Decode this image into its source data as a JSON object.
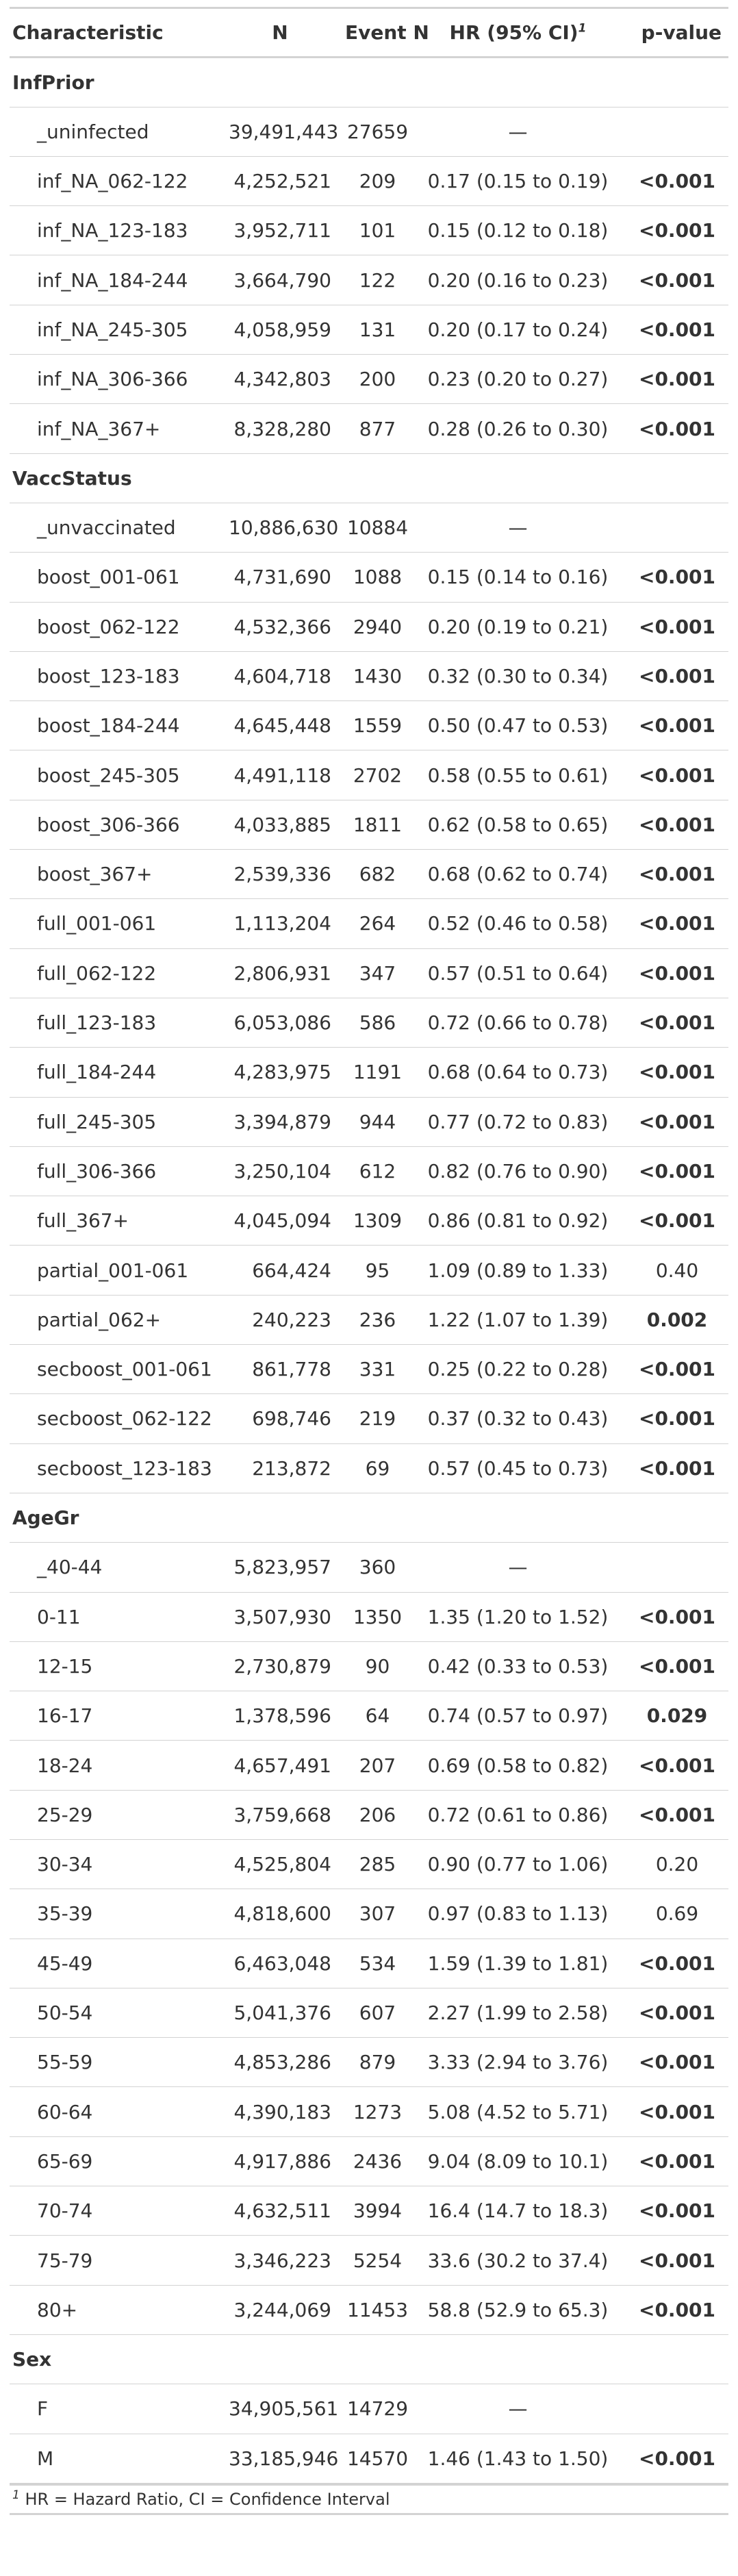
{
  "header": {
    "characteristic": "Characteristic",
    "n": "N",
    "event_n": "Event N",
    "hr": "HR (95% CI)",
    "hr_sup": "1",
    "p": "p-value"
  },
  "groups": [
    {
      "name": "InfPrior",
      "rows": [
        {
          "label": "_uninfected",
          "n": "39,491,443",
          "event": "27659",
          "hr": "—",
          "p": "",
          "sig": false
        },
        {
          "label": "inf_NA_062-122",
          "n": "4,252,521",
          "event": "209",
          "hr": "0.17 (0.15 to 0.19)",
          "p": "<0.001",
          "sig": true
        },
        {
          "label": "inf_NA_123-183",
          "n": "3,952,711",
          "event": "101",
          "hr": "0.15 (0.12 to 0.18)",
          "p": "<0.001",
          "sig": true
        },
        {
          "label": "inf_NA_184-244",
          "n": "3,664,790",
          "event": "122",
          "hr": "0.20 (0.16 to 0.23)",
          "p": "<0.001",
          "sig": true
        },
        {
          "label": "inf_NA_245-305",
          "n": "4,058,959",
          "event": "131",
          "hr": "0.20 (0.17 to 0.24)",
          "p": "<0.001",
          "sig": true
        },
        {
          "label": "inf_NA_306-366",
          "n": "4,342,803",
          "event": "200",
          "hr": "0.23 (0.20 to 0.27)",
          "p": "<0.001",
          "sig": true
        },
        {
          "label": "inf_NA_367+",
          "n": "8,328,280",
          "event": "877",
          "hr": "0.28 (0.26 to 0.30)",
          "p": "<0.001",
          "sig": true
        }
      ]
    },
    {
      "name": "VaccStatus",
      "rows": [
        {
          "label": "_unvaccinated",
          "n": "10,886,630",
          "event": "10884",
          "hr": "—",
          "p": "",
          "sig": false
        },
        {
          "label": "boost_001-061",
          "n": "4,731,690",
          "event": "1088",
          "hr": "0.15 (0.14 to 0.16)",
          "p": "<0.001",
          "sig": true
        },
        {
          "label": "boost_062-122",
          "n": "4,532,366",
          "event": "2940",
          "hr": "0.20 (0.19 to 0.21)",
          "p": "<0.001",
          "sig": true
        },
        {
          "label": "boost_123-183",
          "n": "4,604,718",
          "event": "1430",
          "hr": "0.32 (0.30 to 0.34)",
          "p": "<0.001",
          "sig": true
        },
        {
          "label": "boost_184-244",
          "n": "4,645,448",
          "event": "1559",
          "hr": "0.50 (0.47 to 0.53)",
          "p": "<0.001",
          "sig": true
        },
        {
          "label": "boost_245-305",
          "n": "4,491,118",
          "event": "2702",
          "hr": "0.58 (0.55 to 0.61)",
          "p": "<0.001",
          "sig": true
        },
        {
          "label": "boost_306-366",
          "n": "4,033,885",
          "event": "1811",
          "hr": "0.62 (0.58 to 0.65)",
          "p": "<0.001",
          "sig": true
        },
        {
          "label": "boost_367+",
          "n": "2,539,336",
          "event": "682",
          "hr": "0.68 (0.62 to 0.74)",
          "p": "<0.001",
          "sig": true
        },
        {
          "label": "full_001-061",
          "n": "1,113,204",
          "event": "264",
          "hr": "0.52 (0.46 to 0.58)",
          "p": "<0.001",
          "sig": true
        },
        {
          "label": "full_062-122",
          "n": "2,806,931",
          "event": "347",
          "hr": "0.57 (0.51 to 0.64)",
          "p": "<0.001",
          "sig": true
        },
        {
          "label": "full_123-183",
          "n": "6,053,086",
          "event": "586",
          "hr": "0.72 (0.66 to 0.78)",
          "p": "<0.001",
          "sig": true
        },
        {
          "label": "full_184-244",
          "n": "4,283,975",
          "event": "1191",
          "hr": "0.68 (0.64 to 0.73)",
          "p": "<0.001",
          "sig": true
        },
        {
          "label": "full_245-305",
          "n": "3,394,879",
          "event": "944",
          "hr": "0.77 (0.72 to 0.83)",
          "p": "<0.001",
          "sig": true
        },
        {
          "label": "full_306-366",
          "n": "3,250,104",
          "event": "612",
          "hr": "0.82 (0.76 to 0.90)",
          "p": "<0.001",
          "sig": true
        },
        {
          "label": "full_367+",
          "n": "4,045,094",
          "event": "1309",
          "hr": "0.86 (0.81 to 0.92)",
          "p": "<0.001",
          "sig": true
        },
        {
          "label": "partial_001-061",
          "n": "664,424",
          "event": "95",
          "hr": "1.09 (0.89 to 1.33)",
          "p": "0.40",
          "sig": false
        },
        {
          "label": "partial_062+",
          "n": "240,223",
          "event": "236",
          "hr": "1.22 (1.07 to 1.39)",
          "p": "0.002",
          "sig": true
        },
        {
          "label": "secboost_001-061",
          "n": "861,778",
          "event": "331",
          "hr": "0.25 (0.22 to 0.28)",
          "p": "<0.001",
          "sig": true
        },
        {
          "label": "secboost_062-122",
          "n": "698,746",
          "event": "219",
          "hr": "0.37 (0.32 to 0.43)",
          "p": "<0.001",
          "sig": true
        },
        {
          "label": "secboost_123-183",
          "n": "213,872",
          "event": "69",
          "hr": "0.57 (0.45 to 0.73)",
          "p": "<0.001",
          "sig": true
        }
      ]
    },
    {
      "name": "AgeGr",
      "rows": [
        {
          "label": "_40-44",
          "n": "5,823,957",
          "event": "360",
          "hr": "—",
          "p": "",
          "sig": false
        },
        {
          "label": "0-11",
          "n": "3,507,930",
          "event": "1350",
          "hr": "1.35 (1.20 to 1.52)",
          "p": "<0.001",
          "sig": true
        },
        {
          "label": "12-15",
          "n": "2,730,879",
          "event": "90",
          "hr": "0.42 (0.33 to 0.53)",
          "p": "<0.001",
          "sig": true
        },
        {
          "label": "16-17",
          "n": "1,378,596",
          "event": "64",
          "hr": "0.74 (0.57 to 0.97)",
          "p": "0.029",
          "sig": true
        },
        {
          "label": "18-24",
          "n": "4,657,491",
          "event": "207",
          "hr": "0.69 (0.58 to 0.82)",
          "p": "<0.001",
          "sig": true
        },
        {
          "label": "25-29",
          "n": "3,759,668",
          "event": "206",
          "hr": "0.72 (0.61 to 0.86)",
          "p": "<0.001",
          "sig": true
        },
        {
          "label": "30-34",
          "n": "4,525,804",
          "event": "285",
          "hr": "0.90 (0.77 to 1.06)",
          "p": "0.20",
          "sig": false
        },
        {
          "label": "35-39",
          "n": "4,818,600",
          "event": "307",
          "hr": "0.97 (0.83 to 1.13)",
          "p": "0.69",
          "sig": false
        },
        {
          "label": "45-49",
          "n": "6,463,048",
          "event": "534",
          "hr": "1.59 (1.39 to 1.81)",
          "p": "<0.001",
          "sig": true
        },
        {
          "label": "50-54",
          "n": "5,041,376",
          "event": "607",
          "hr": "2.27 (1.99 to 2.58)",
          "p": "<0.001",
          "sig": true
        },
        {
          "label": "55-59",
          "n": "4,853,286",
          "event": "879",
          "hr": "3.33 (2.94 to 3.76)",
          "p": "<0.001",
          "sig": true
        },
        {
          "label": "60-64",
          "n": "4,390,183",
          "event": "1273",
          "hr": "5.08 (4.52 to 5.71)",
          "p": "<0.001",
          "sig": true
        },
        {
          "label": "65-69",
          "n": "4,917,886",
          "event": "2436",
          "hr": "9.04 (8.09 to 10.1)",
          "p": "<0.001",
          "sig": true
        },
        {
          "label": "70-74",
          "n": "4,632,511",
          "event": "3994",
          "hr": "16.4 (14.7 to 18.3)",
          "p": "<0.001",
          "sig": true
        },
        {
          "label": "75-79",
          "n": "3,346,223",
          "event": "5254",
          "hr": "33.6 (30.2 to 37.4)",
          "p": "<0.001",
          "sig": true
        },
        {
          "label": "80+",
          "n": "3,244,069",
          "event": "11453",
          "hr": "58.8 (52.9 to 65.3)",
          "p": "<0.001",
          "sig": true
        }
      ]
    },
    {
      "name": "Sex",
      "rows": [
        {
          "label": "F",
          "n": "34,905,561",
          "event": "14729",
          "hr": "—",
          "p": "",
          "sig": false
        },
        {
          "label": "M",
          "n": "33,185,946",
          "event": "14570",
          "hr": "1.46 (1.43 to 1.50)",
          "p": "<0.001",
          "sig": true
        }
      ]
    }
  ],
  "footnote": {
    "marker": "1",
    "text": "HR = Hazard Ratio, CI = Confidence Interval"
  }
}
